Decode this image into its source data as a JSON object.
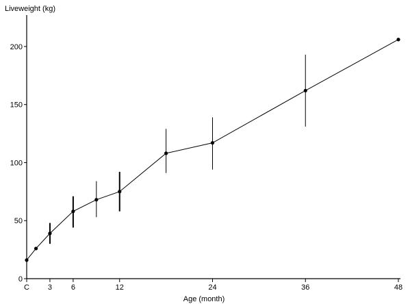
{
  "chart_data": {
    "type": "line",
    "title": "",
    "xlabel": "Age (month)",
    "ylabel": "Liveweight (kg)",
    "xlim": [
      0,
      48
    ],
    "ylim": [
      0,
      220
    ],
    "x_ticks": [
      0,
      3,
      6,
      12,
      24,
      36,
      48
    ],
    "x_tick_labels": [
      "C",
      "3",
      "6",
      "12",
      "24",
      "36",
      "48"
    ],
    "y_ticks": [
      0,
      50,
      100,
      150,
      200
    ],
    "y_tick_labels": [
      "0",
      "50",
      "100",
      "150",
      "200"
    ],
    "grid": false,
    "legend": "none",
    "color": "#000000",
    "series": [
      {
        "x": [
          0,
          1.2,
          3,
          6,
          9,
          12,
          18,
          24,
          36,
          48
        ],
        "y": [
          16,
          26,
          39,
          58,
          68,
          75,
          108,
          117,
          162,
          206
        ],
        "error_low": [
          null,
          null,
          30,
          44,
          53,
          58,
          91,
          94,
          131,
          null
        ],
        "error_high": [
          null,
          null,
          48,
          71,
          84,
          92,
          129,
          139,
          193,
          null
        ]
      }
    ]
  }
}
